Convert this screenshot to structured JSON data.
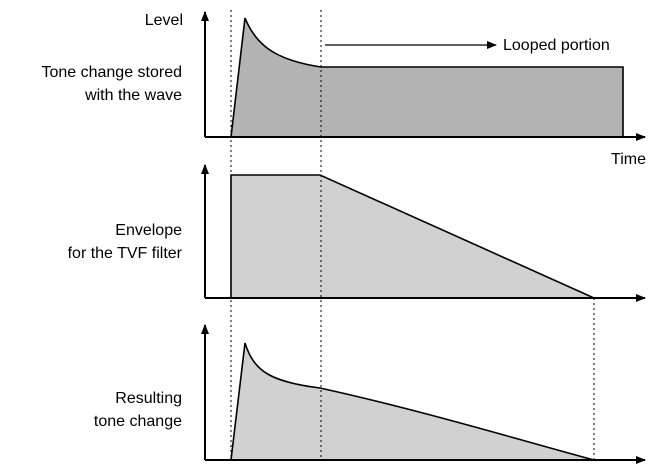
{
  "labels": {
    "level": "Level",
    "time": "Time",
    "looped_portion": "Looped portion",
    "panel1_line1": "Tone change stored",
    "panel1_line2": "with the wave",
    "panel2_line1": "Envelope",
    "panel2_line2": "for the TVF filter",
    "panel3_line1": "Resulting",
    "panel3_line2": "tone change"
  },
  "colors": {
    "fill_dark": "#b3b3b3",
    "fill_light": "#d1d1d1",
    "stroke": "#000000"
  }
}
